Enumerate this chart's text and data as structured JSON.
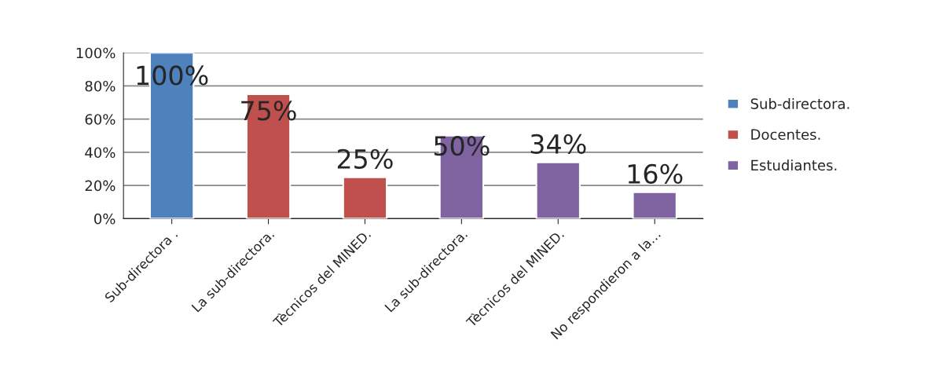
{
  "chart_data": {
    "type": "bar",
    "categories": [
      "Sub-directora .",
      "La sub-directora.",
      "Tècnicos del MINED.",
      "La sub-directora.",
      "Tècnicos del MINED.",
      "No respondieron a la…"
    ],
    "series": [
      {
        "name": "Sub-directora.",
        "color": "#4f81bd",
        "values": [
          100,
          null,
          null,
          null,
          null,
          null
        ],
        "value_labels": [
          "100%",
          null,
          null,
          null,
          null,
          null
        ]
      },
      {
        "name": "Docentes.",
        "color": "#c0504d",
        "values": [
          null,
          75,
          25,
          null,
          null,
          null
        ],
        "value_labels": [
          null,
          "75%",
          "25%",
          null,
          null,
          null
        ]
      },
      {
        "name": "Estudiantes.",
        "color": "#8064a2",
        "values": [
          null,
          null,
          null,
          50,
          34,
          16
        ],
        "value_labels": [
          null,
          null,
          null,
          "50%",
          "34%",
          "16%"
        ]
      }
    ],
    "ylim": [
      0,
      100
    ],
    "yticks": [
      {
        "value": 0,
        "label": "0%"
      },
      {
        "value": 20,
        "label": "20%"
      },
      {
        "value": 40,
        "label": "40%"
      },
      {
        "value": 60,
        "label": "60%"
      },
      {
        "value": 80,
        "label": "80%"
      },
      {
        "value": 100,
        "label": "100%"
      }
    ],
    "grid": "y",
    "legend": "right"
  }
}
